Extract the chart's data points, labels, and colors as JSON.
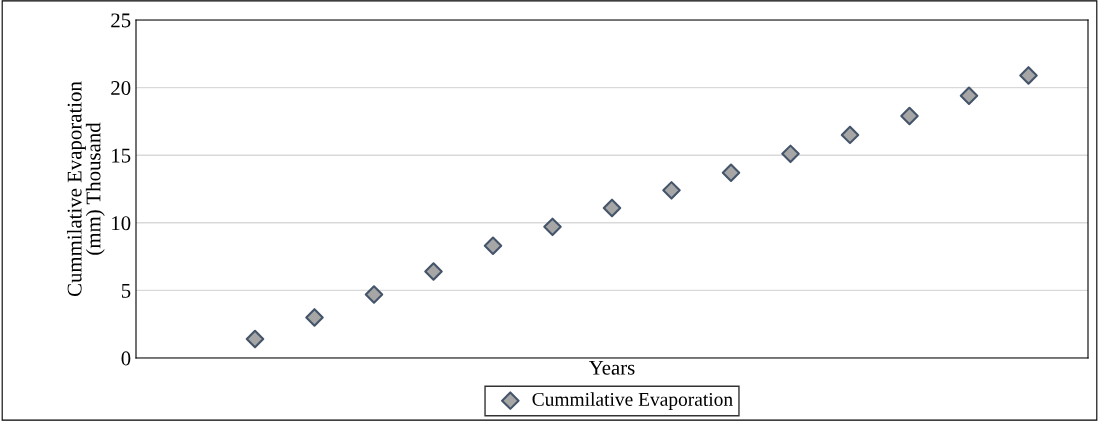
{
  "chart_data": {
    "type": "scatter",
    "xlabel": "Years",
    "ylabel": "Cummilative Evaporation\n(mm) Thousand",
    "categories": [
      null,
      null,
      null,
      null,
      null,
      null,
      null,
      null,
      null,
      null,
      null,
      null,
      null,
      null,
      null
    ],
    "series": [
      {
        "name": "Cummilative Evaporation",
        "color": "#a6a6a6",
        "values": [
          null,
          1.4,
          3.0,
          4.7,
          6.4,
          8.3,
          9.7,
          11.1,
          12.4,
          13.7,
          15.1,
          16.5,
          17.9,
          19.4,
          20.9
        ]
      }
    ],
    "ylim": [
      0,
      25
    ],
    "yticks": [
      0,
      5,
      10,
      15,
      20,
      25
    ],
    "grid": "y",
    "legend": "bottom",
    "marker": "diamond"
  }
}
